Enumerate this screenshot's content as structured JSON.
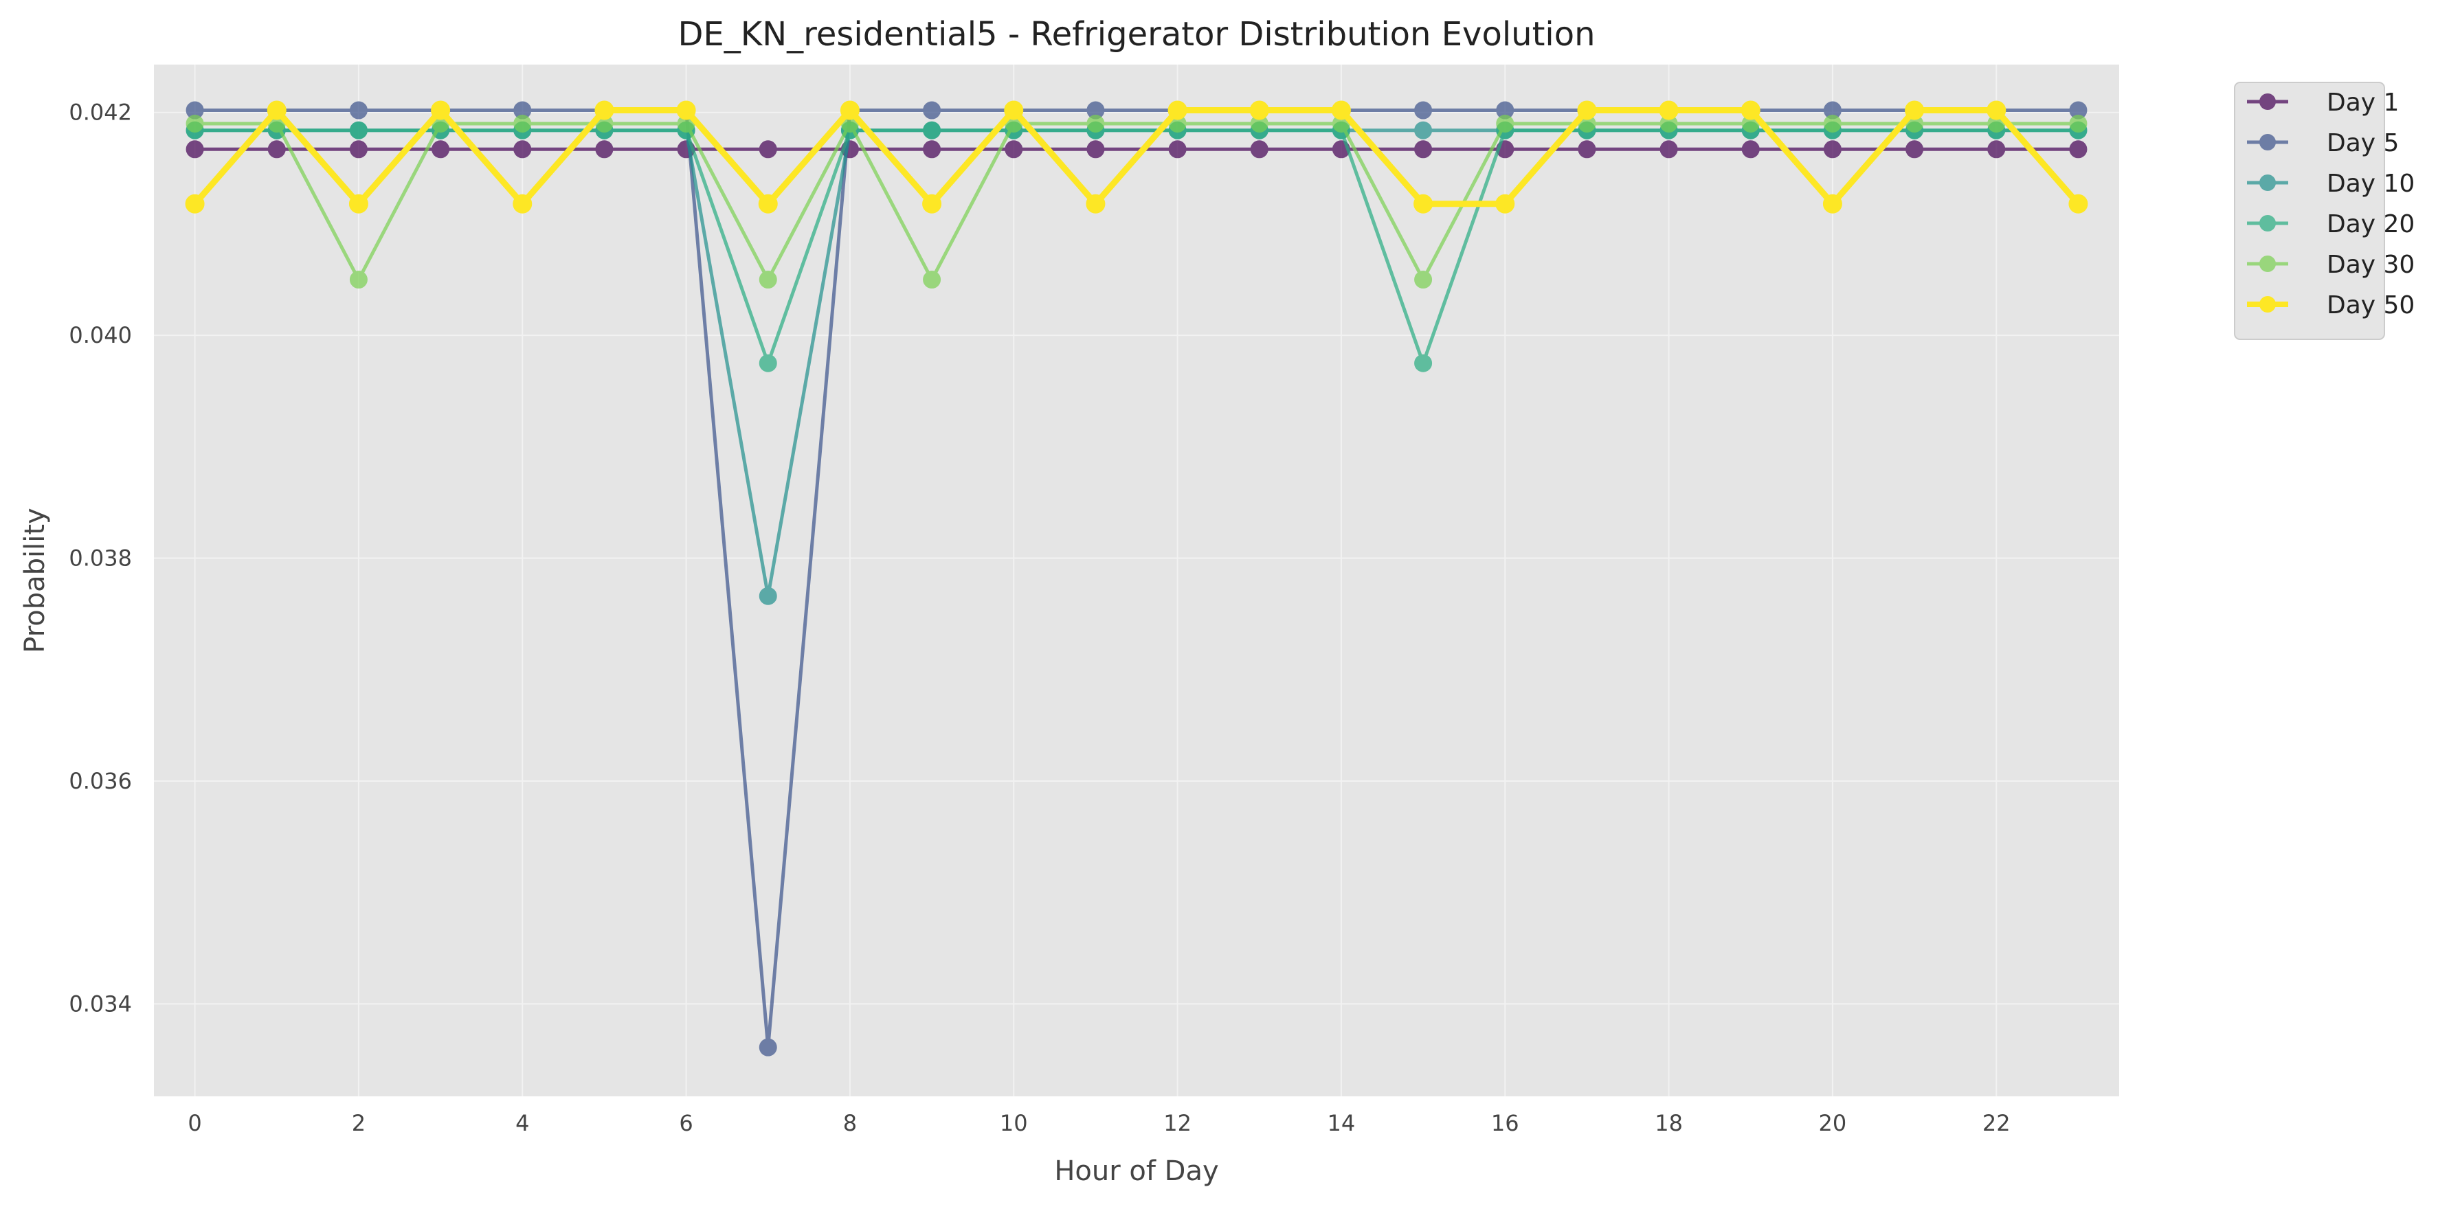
{
  "chart_data": {
    "type": "line",
    "title": "DE_KN_residential5 - Refrigerator Distribution Evolution",
    "xlabel": "Hour of Day",
    "ylabel": "Probability",
    "x": [
      0,
      1,
      2,
      3,
      4,
      5,
      6,
      7,
      8,
      9,
      10,
      11,
      12,
      13,
      14,
      15,
      16,
      17,
      18,
      19,
      20,
      21,
      22,
      23
    ],
    "xlim": [
      -0.5,
      23.5
    ],
    "ylim": [
      0.03317,
      0.04243
    ],
    "xticks": [
      0,
      2,
      4,
      6,
      8,
      10,
      12,
      14,
      16,
      18,
      20,
      22
    ],
    "xtick_labels": [
      "0",
      "2",
      "4",
      "6",
      "8",
      "10",
      "12",
      "14",
      "16",
      "18",
      "20",
      "22"
    ],
    "yticks": [
      0.034,
      0.036,
      0.038,
      0.04,
      0.042
    ],
    "ytick_labels": [
      "0.034",
      "0.036",
      "0.038",
      "0.040",
      "0.042"
    ],
    "grid": true,
    "legend_position": "outside-top-right",
    "background": "#e5e5e5",
    "series": [
      {
        "name": "Day 1",
        "color": "#440154",
        "values": [
          0.04167,
          0.04167,
          0.04167,
          0.04167,
          0.04167,
          0.04167,
          0.04167,
          0.04167,
          0.04167,
          0.04167,
          0.04167,
          0.04167,
          0.04167,
          0.04167,
          0.04167,
          0.04167,
          0.04167,
          0.04167,
          0.04167,
          0.04167,
          0.04167,
          0.04167,
          0.04167,
          0.04167
        ]
      },
      {
        "name": "Day 5",
        "color": "#3b528b",
        "values": [
          0.04202,
          0.04202,
          0.04202,
          0.04202,
          0.04202,
          0.04202,
          0.04202,
          0.03361,
          0.04202,
          0.04202,
          0.04202,
          0.04202,
          0.04202,
          0.04202,
          0.04202,
          0.04202,
          0.04202,
          0.04202,
          0.04202,
          0.04202,
          0.04202,
          0.04202,
          0.04202,
          0.04202
        ]
      },
      {
        "name": "Day 10",
        "color": "#21908d",
        "values": [
          0.04184,
          0.04184,
          0.04184,
          0.04184,
          0.04184,
          0.04184,
          0.04184,
          0.03766,
          0.04184,
          0.04184,
          0.04184,
          0.04184,
          0.04184,
          0.04184,
          0.04184,
          0.04184,
          0.04184,
          0.04184,
          0.04184,
          0.04184,
          0.04184,
          0.04184,
          0.04184,
          0.04184
        ]
      },
      {
        "name": "Day 20",
        "color": "#27ad81",
        "values": [
          0.04184,
          0.04184,
          0.04184,
          0.04184,
          0.04184,
          0.04184,
          0.04184,
          0.03975,
          0.04184,
          0.04184,
          0.04184,
          0.04184,
          0.04184,
          0.04184,
          0.04184,
          0.03975,
          0.04184,
          0.04184,
          0.04184,
          0.04184,
          0.04184,
          0.04184,
          0.04184,
          0.04184
        ]
      },
      {
        "name": "Day 30",
        "color": "#7ad151",
        "values": [
          0.0419,
          0.0419,
          0.0405,
          0.0419,
          0.0419,
          0.0419,
          0.0419,
          0.0405,
          0.0419,
          0.0405,
          0.0419,
          0.0419,
          0.0419,
          0.0419,
          0.0419,
          0.0405,
          0.0419,
          0.0419,
          0.0419,
          0.0419,
          0.0419,
          0.0419,
          0.0419,
          0.0419
        ]
      },
      {
        "name": "Day 50",
        "color": "#fde725",
        "values": [
          0.04118,
          0.04202,
          0.04118,
          0.04202,
          0.04118,
          0.04202,
          0.04202,
          0.04118,
          0.04202,
          0.04118,
          0.04202,
          0.04118,
          0.04202,
          0.04202,
          0.04202,
          0.04118,
          0.04118,
          0.04202,
          0.04202,
          0.04202,
          0.04118,
          0.04202,
          0.04202,
          0.04118
        ]
      }
    ]
  }
}
